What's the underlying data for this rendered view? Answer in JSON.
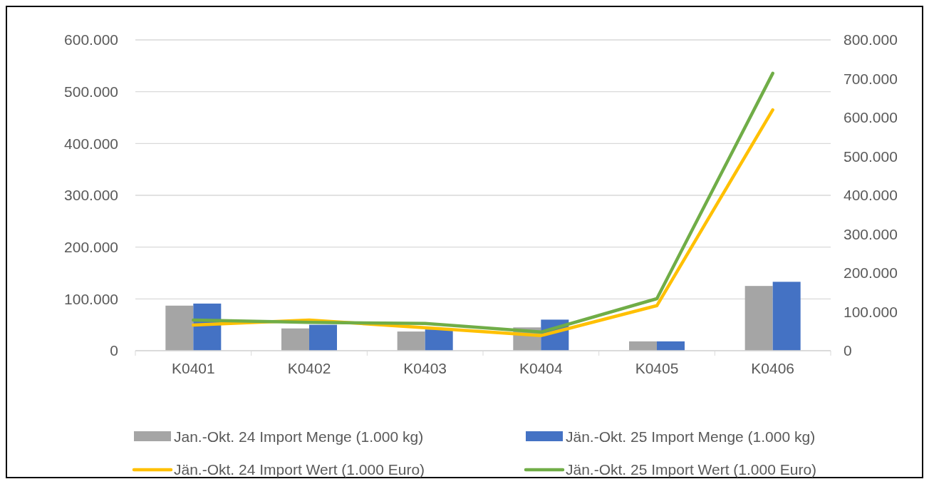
{
  "chart_data": {
    "type": "bar",
    "categories": [
      "K0401",
      "K0402",
      "K0403",
      "K0404",
      "K0405",
      "K0406"
    ],
    "series": [
      {
        "name": "Jan.-Okt. 24 Import Menge (1.000 kg)",
        "color": "#a5a5a5",
        "values": [
          87000,
          43000,
          37000,
          45000,
          18000,
          125000
        ]
      },
      {
        "name": "Jän.-Okt. 25 Import Menge (1.000 kg)",
        "color": "#4472c4",
        "values": [
          91000,
          50000,
          41000,
          60000,
          18000,
          133000
        ]
      },
      {
        "name": "Jän.-Okt. 24 Import Wert (1.000 Euro)",
        "type": "line",
        "axis": "y2",
        "color": "#ffc000",
        "values": [
          66000,
          79000,
          59000,
          39000,
          116000,
          620000
        ]
      },
      {
        "name": "Jän.-Okt. 25 Import Wert (1.000 Euro)",
        "type": "line",
        "axis": "y2",
        "color": "#70ad47",
        "values": [
          79000,
          73000,
          70000,
          48000,
          134000,
          714000
        ]
      }
    ],
    "ylim": [
      0,
      600000
    ],
    "yticks": [
      {
        "value": 0,
        "label": "0"
      },
      {
        "value": 100000,
        "label": "100.000"
      },
      {
        "value": 200000,
        "label": "200.000"
      },
      {
        "value": 300000,
        "label": "300.000"
      },
      {
        "value": 400000,
        "label": "400.000"
      },
      {
        "value": 500000,
        "label": "500.000"
      },
      {
        "value": 600000,
        "label": "600.000"
      }
    ],
    "y2lim": [
      0,
      800000
    ],
    "y2ticks": [
      {
        "value": 0,
        "label": "0"
      },
      {
        "value": 100000,
        "label": "100.000"
      },
      {
        "value": 200000,
        "label": "200.000"
      },
      {
        "value": 300000,
        "label": "300.000"
      },
      {
        "value": 400000,
        "label": "400.000"
      },
      {
        "value": 500000,
        "label": "500.000"
      },
      {
        "value": 600000,
        "label": "600.000"
      },
      {
        "value": 700000,
        "label": "700.000"
      },
      {
        "value": 800000,
        "label": "800.000"
      }
    ],
    "grid": "y",
    "legend": "bottom",
    "marker": "none",
    "line_style": "solid"
  }
}
